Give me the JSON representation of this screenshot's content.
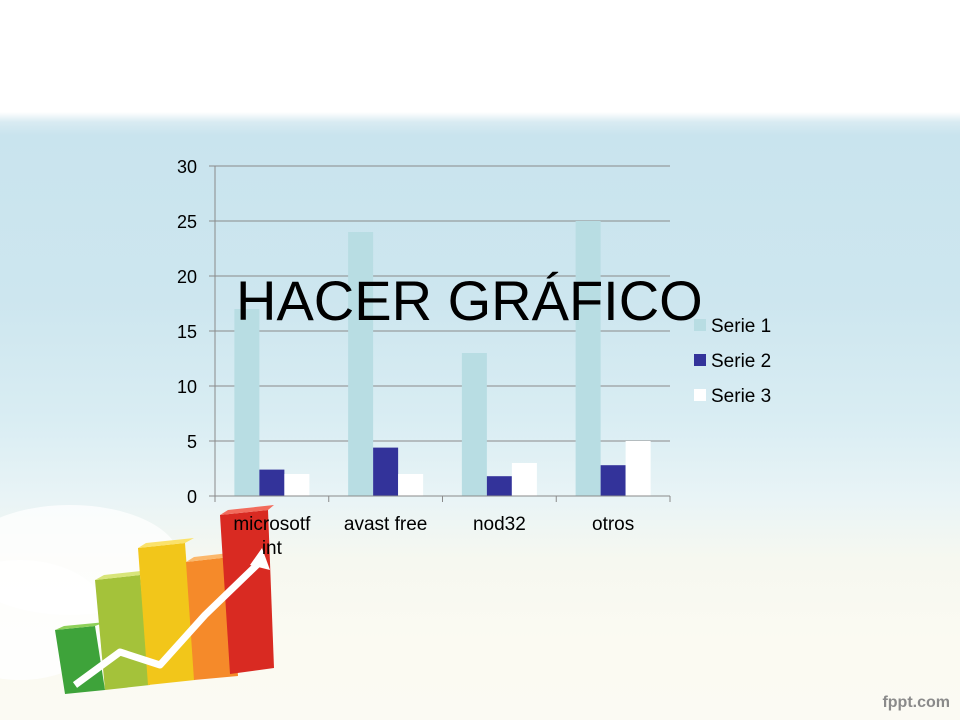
{
  "slide": {
    "title": "HACER GRÁFICO",
    "watermark": "fppt.com"
  },
  "chart_data": {
    "type": "bar",
    "categories": [
      "microsotf int",
      "avast free",
      "nod32",
      "otros"
    ],
    "category_lines": [
      [
        "microsotf",
        "int"
      ],
      [
        "avast free"
      ],
      [
        "nod32"
      ],
      [
        "otros"
      ]
    ],
    "series": [
      {
        "name": "Serie 1",
        "values": [
          17,
          24,
          13,
          25
        ],
        "color": "#b8dde3"
      },
      {
        "name": "Serie 2",
        "values": [
          2.4,
          4.4,
          1.8,
          2.8
        ],
        "color": "#33339a"
      },
      {
        "name": "Serie 3",
        "values": [
          2,
          2,
          3,
          5
        ],
        "color": "#ffffff"
      }
    ],
    "ylim": [
      0,
      30
    ],
    "yticks": [
      "0",
      "5",
      "10",
      "15",
      "20",
      "25",
      "30"
    ],
    "grid": true,
    "legend": "right",
    "title": "",
    "xlabel": "",
    "ylabel": ""
  }
}
